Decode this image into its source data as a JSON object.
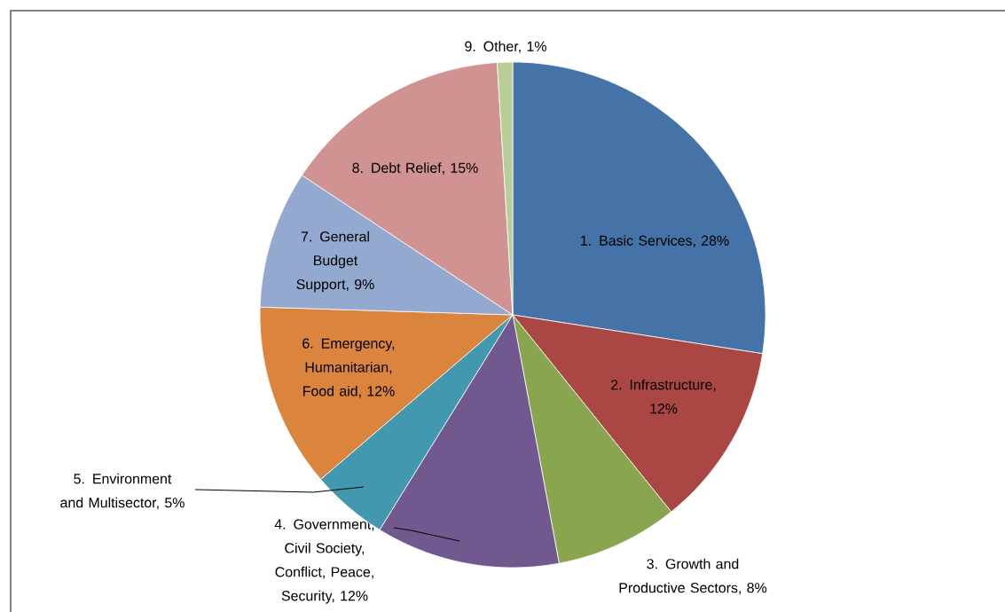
{
  "chart_data": {
    "type": "pie",
    "categories": [
      "1. Basic Services, 28%",
      "2. Infrastructure, 12%",
      "3. Growth and Productive Sectors, 8%",
      "4. Government, Civil Society, Conflict, Peace, Security, 12%",
      "5. Environment and Multisector, 5%",
      "6. Emergency, Humanitarian, Food aid, 12%",
      "7. General Budget Support, 9%",
      "8. Debt Relief, 15%",
      "9. Other, 1%"
    ],
    "values": [
      28,
      12,
      8,
      12,
      5,
      12,
      9,
      15,
      1
    ],
    "colors": [
      "#4572a7",
      "#aa4643",
      "#89a54e",
      "#71588f",
      "#4198af",
      "#db843d",
      "#93a9cf",
      "#d19392",
      "#b9cd96"
    ]
  }
}
